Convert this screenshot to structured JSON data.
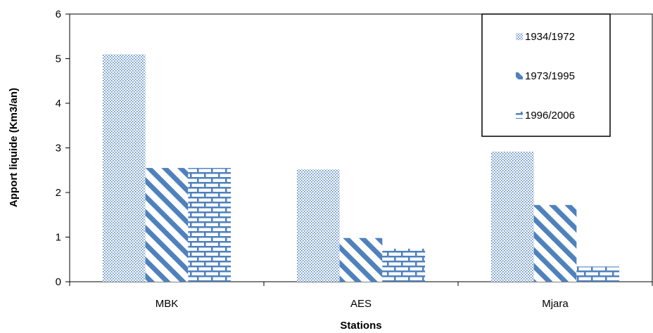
{
  "chart_data": {
    "type": "bar",
    "title": "",
    "xlabel": "Stations",
    "ylabel": "Apport liquide (Km3/an)",
    "categories": [
      "MBK",
      "AES",
      "Mjara"
    ],
    "series": [
      {
        "name": "1934/1972",
        "values": [
          5.1,
          2.52,
          2.92
        ],
        "pattern": "dots"
      },
      {
        "name": "1973/1995",
        "values": [
          2.55,
          0.98,
          1.72
        ],
        "pattern": "diagonal"
      },
      {
        "name": "1996/2006",
        "values": [
          2.55,
          0.74,
          0.34
        ],
        "pattern": "brick"
      }
    ],
    "ylim": [
      0,
      6
    ],
    "yticks": [
      "0",
      "1",
      "2",
      "3",
      "4",
      "5",
      "6"
    ],
    "grid": false,
    "legend_position": "top-right",
    "colors": {
      "bar": "#4f81bd",
      "axis": "#000000"
    }
  }
}
